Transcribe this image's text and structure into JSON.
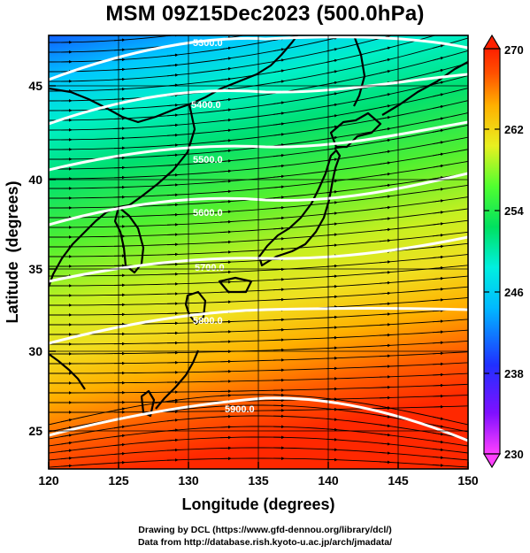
{
  "title": "MSM 09Z15Dec2023 (500.0hPa)",
  "axes": {
    "xlabel": "Longitude (degrees)",
    "ylabel": "Latitude  (degrees)",
    "x_ticks": [
      "120",
      "125",
      "130",
      "135",
      "140",
      "145",
      "150"
    ],
    "y_ticks": [
      "25",
      "30",
      "35",
      "40",
      "45"
    ]
  },
  "colorbar": {
    "ticks": [
      "270",
      "262",
      "254",
      "246",
      "238",
      "230"
    ],
    "colors": [
      "#ff40ff",
      "#8010ff",
      "#2030ff",
      "#00b8ff",
      "#00f0e0",
      "#00e060",
      "#50ff30",
      "#e8f020",
      "#ffb000",
      "#ff5000",
      "#ff2000"
    ]
  },
  "contours": [
    {
      "label": "5300.0"
    },
    {
      "label": "5400.0"
    },
    {
      "label": "5500.0"
    },
    {
      "label": "5600.0"
    },
    {
      "label": "5700.0"
    },
    {
      "label": "5800.0"
    },
    {
      "label": "5900.0"
    }
  ],
  "credits": {
    "line1": "Drawing by DCL (https://www.gfd-dennou.org/library/dcl/)",
    "line2": "Data from http://database.rish.kyoto-u.ac.jp/arch/jmadata/"
  }
}
